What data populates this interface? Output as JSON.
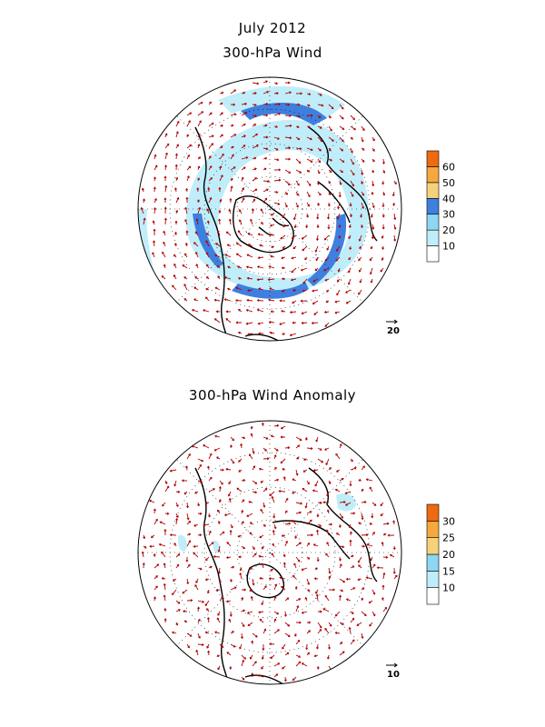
{
  "title": {
    "main": "July 2012",
    "panel1": "300-hPa Wind",
    "panel2": "300-hPa Wind Anomaly"
  },
  "panels": [
    {
      "id": "wind",
      "colorbar": {
        "labels": [
          "10",
          "20",
          "30",
          "40",
          "50",
          "60"
        ],
        "colors": [
          "#ffffff",
          "#bfeefa",
          "#8ed6f2",
          "#3f7fe0",
          "#f5d27a",
          "#f5a83e",
          "#ee6a10"
        ]
      },
      "reference_vector": "20"
    },
    {
      "id": "anomaly",
      "colorbar": {
        "labels": [
          "10",
          "15",
          "20",
          "25",
          "30"
        ],
        "colors": [
          "#ffffff",
          "#bfeefa",
          "#8ed6f2",
          "#f5d27a",
          "#f5a83e",
          "#ee6a10"
        ]
      },
      "reference_vector": "10"
    }
  ],
  "style": {
    "vector_color": "#b00000",
    "coast_color": "#000000",
    "grid_color": "#000000",
    "jet_light": "#bfeefa",
    "jet_mid": "#8ed6f2",
    "jet_strong": "#3f7fe0"
  }
}
